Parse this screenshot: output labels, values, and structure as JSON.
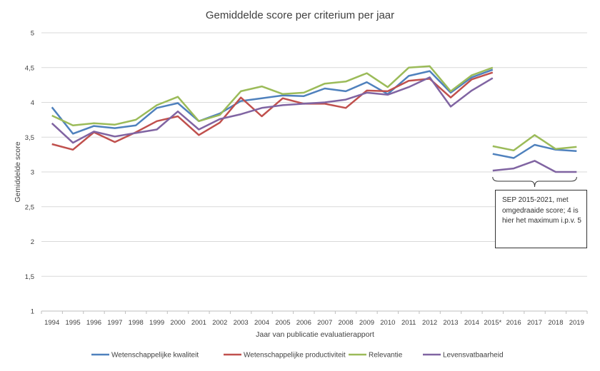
{
  "chart_data": {
    "type": "line",
    "title": "Gemiddelde score per criterium per jaar",
    "xlabel": "Jaar van publicatie evaluatierapport",
    "ylabel": "Gemiddelde score",
    "ylim": [
      1,
      5
    ],
    "y_ticks": [
      "1",
      "1,5",
      "2",
      "2,5",
      "3",
      "3,5",
      "4",
      "4,5",
      "5"
    ],
    "grid": true,
    "legend_position": "bottom",
    "categories": [
      "1994",
      "1995",
      "1996",
      "1997",
      "1998",
      "1999",
      "2000",
      "2001",
      "2002",
      "2003",
      "2004",
      "2005",
      "2006",
      "2007",
      "2008",
      "2009",
      "2010",
      "2011",
      "2012",
      "2013",
      "2014",
      "2015*",
      "2016",
      "2017",
      "2018",
      "2019"
    ],
    "series": [
      {
        "name": "Wetenschappelijke kwaliteit",
        "color": "#4f81bd",
        "segments": [
          {
            "x": [
              "1994",
              "1995",
              "1996",
              "1997",
              "1998",
              "1999",
              "2000",
              "2001",
              "2002",
              "2003",
              "2004",
              "2005",
              "2006",
              "2007",
              "2008",
              "2009",
              "2010",
              "2011",
              "2012",
              "2013",
              "2014",
              "2015*"
            ],
            "y": [
              3.93,
              3.55,
              3.66,
              3.63,
              3.67,
              3.92,
              3.99,
              3.73,
              3.84,
              4.02,
              4.06,
              4.1,
              4.09,
              4.2,
              4.16,
              4.29,
              4.12,
              4.38,
              4.45,
              4.14,
              4.36,
              4.47
            ]
          },
          {
            "x": [
              "2015*",
              "2016",
              "2017",
              "2018",
              "2019"
            ],
            "y": [
              3.26,
              3.2,
              3.39,
              3.32,
              3.3
            ]
          }
        ]
      },
      {
        "name": "Wetenschappelijke productiviteit",
        "color": "#c0504d",
        "segments": [
          {
            "x": [
              "1994",
              "1995",
              "1996",
              "1997",
              "1998",
              "1999",
              "2000",
              "2001",
              "2002",
              "2003",
              "2004",
              "2005",
              "2006",
              "2007",
              "2008",
              "2009",
              "2010",
              "2011",
              "2012",
              "2013",
              "2014",
              "2015*"
            ],
            "y": [
              3.4,
              3.32,
              3.57,
              3.43,
              3.57,
              3.73,
              3.8,
              3.53,
              3.71,
              4.07,
              3.8,
              4.06,
              3.98,
              3.98,
              3.92,
              4.17,
              4.16,
              4.31,
              4.34,
              4.07,
              4.33,
              4.43
            ]
          }
        ]
      },
      {
        "name": "Relevantie",
        "color": "#9bbb59",
        "segments": [
          {
            "x": [
              "1994",
              "1995",
              "1996",
              "1997",
              "1998",
              "1999",
              "2000",
              "2001",
              "2002",
              "2003",
              "2004",
              "2005",
              "2006",
              "2007",
              "2008",
              "2009",
              "2010",
              "2011",
              "2012",
              "2013",
              "2014",
              "2015*"
            ],
            "y": [
              3.81,
              3.67,
              3.7,
              3.68,
              3.75,
              3.96,
              4.08,
              3.73,
              3.82,
              4.16,
              4.23,
              4.12,
              4.14,
              4.27,
              4.3,
              4.42,
              4.22,
              4.5,
              4.52,
              4.16,
              4.39,
              4.5
            ]
          },
          {
            "x": [
              "2015*",
              "2016",
              "2017",
              "2018",
              "2019"
            ],
            "y": [
              3.37,
              3.31,
              3.53,
              3.33,
              3.36
            ]
          }
        ]
      },
      {
        "name": "Levensvatbaarheid",
        "color": "#8064a2",
        "segments": [
          {
            "x": [
              "1994",
              "1995",
              "1996",
              "1997",
              "1998",
              "1999",
              "2000",
              "2001",
              "2002",
              "2003",
              "2004",
              "2005",
              "2006",
              "2007",
              "2008",
              "2009",
              "2010",
              "2011",
              "2012",
              "2013",
              "2014",
              "2015*"
            ],
            "y": [
              3.7,
              3.42,
              3.58,
              3.51,
              3.56,
              3.61,
              3.87,
              3.61,
              3.76,
              3.83,
              3.92,
              3.96,
              3.98,
              4.0,
              4.04,
              4.14,
              4.11,
              4.22,
              4.36,
              3.94,
              4.17,
              4.35
            ]
          },
          {
            "x": [
              "2015*",
              "2016",
              "2017",
              "2018",
              "2019"
            ],
            "y": [
              3.02,
              3.05,
              3.16,
              3.0,
              3.0
            ]
          }
        ]
      }
    ],
    "annotation": {
      "text": "SEP 2015-2021, met omgedraaide score; 4 is hier het maximum i.p.v. 5",
      "x_range": [
        "2015*",
        "2019"
      ]
    }
  }
}
